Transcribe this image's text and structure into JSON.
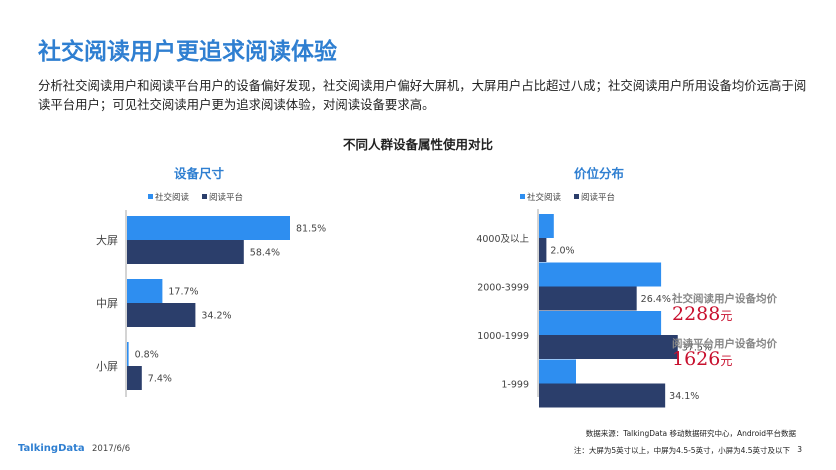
{
  "page": {
    "title": "社交阅读用户更追求阅读体验",
    "subtitle": "分析社交阅读用户和阅读平台用户的设备偏好发现，社交阅读用户偏好大屏机，大屏用户占比超过八成；社交阅读用户所用设备均价远高于阅读平台用户；可见社交阅读用户更为追求阅读体验，对阅读设备要求高。",
    "section_title": "不同人群设备属性使用对比"
  },
  "colors": {
    "social": "#2e8ef0",
    "platform": "#2b3e6b",
    "accent": "#c8102e",
    "title_blue": "#2f7fd1"
  },
  "chart_data": [
    {
      "type": "bar",
      "orientation": "horizontal",
      "title": "设备尺寸",
      "legend": [
        "社交阅读",
        "阅读平台"
      ],
      "legend_placement": "top-left",
      "categories": [
        "大屏",
        "中屏",
        "小屏"
      ],
      "series": [
        {
          "name": "社交阅读",
          "values": [
            81.5,
            17.7,
            0.8
          ],
          "labels": [
            "81.5%",
            "17.7%",
            "0.8%"
          ]
        },
        {
          "name": "阅读平台",
          "values": [
            58.4,
            34.2,
            7.4
          ],
          "labels": [
            "58.4%",
            "34.2%",
            "7.4%"
          ]
        }
      ],
      "xlim": [
        0,
        100
      ],
      "grid": false
    },
    {
      "type": "bar",
      "orientation": "horizontal",
      "title": "价位分布",
      "legend": [
        "社交阅读",
        "阅读平台"
      ],
      "legend_placement": "top-left",
      "categories": [
        "4000及以上",
        "2000-3999",
        "1000-1999",
        "1-999"
      ],
      "series": [
        {
          "name": "社交阅读",
          "values": [
            4.0,
            33.0,
            33.0,
            10.0
          ],
          "labels": [
            "",
            "",
            "",
            ""
          ]
        },
        {
          "name": "阅读平台",
          "values": [
            2.0,
            26.4,
            37.5,
            34.1
          ],
          "labels": [
            "2.0%",
            "26.4%",
            "37.5%",
            "34.1%"
          ]
        }
      ],
      "xlim": [
        0,
        40
      ],
      "grid": false
    }
  ],
  "notes": [
    {
      "label": "社交阅读用户设备均价",
      "value": "2288",
      "unit": "元"
    },
    {
      "label": "阅读平台用户设备均价",
      "value": "1626",
      "unit": "元"
    }
  ],
  "footer": {
    "logo": "TalkingData",
    "date": "2017/6/6",
    "source": "数据来源：TalkingData 移动数据研究中心，Android平台数据",
    "note": "注：大屏为5英寸以上，中屏为4.5-5英寸，小屏为4.5英寸及以下",
    "page_number": "3"
  }
}
